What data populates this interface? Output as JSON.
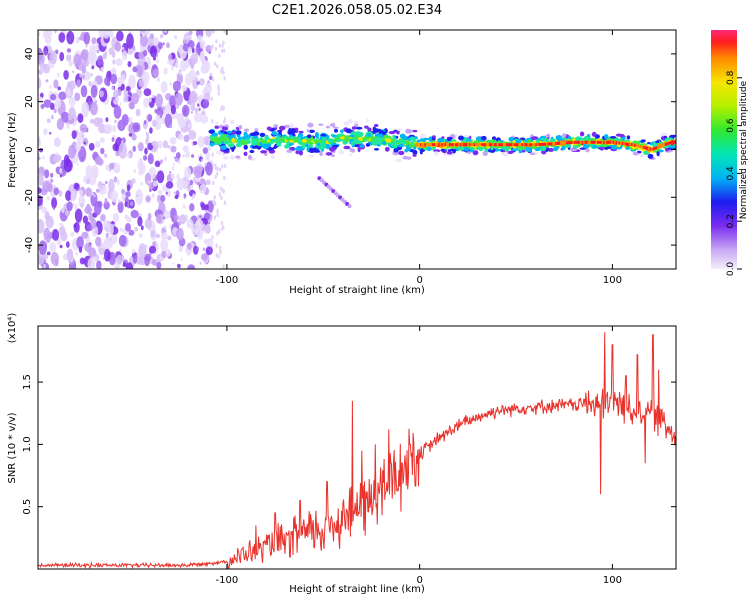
{
  "figure": {
    "title": "C2E1.2026.058.05.02.E34"
  },
  "chart_data": [
    {
      "type": "heatmap",
      "name": "spectrogram",
      "xlabel": "Height of straight line (km)",
      "ylabel": "Frequency (Hz)",
      "xlim": [
        -198,
        133
      ],
      "ylim": [
        -50,
        50
      ],
      "x_ticks": [
        -100,
        0,
        100
      ],
      "y_ticks": [
        -40,
        -20,
        0,
        20,
        40
      ],
      "colorbar": {
        "label": "Normalized spectral amplitude",
        "range": [
          0,
          1
        ],
        "ticks": [
          0.0,
          0.2,
          0.4,
          0.6,
          0.8
        ]
      },
      "signal_band": {
        "description": "narrow band near 0-5 Hz, strongest from 0 to 130 km",
        "ridge": [
          [
            -108,
            5
          ],
          [
            -90,
            3
          ],
          [
            -70,
            4
          ],
          [
            -50,
            3
          ],
          [
            -40,
            5
          ],
          [
            -20,
            4
          ],
          [
            -10,
            3
          ],
          [
            0,
            2
          ],
          [
            20,
            2
          ],
          [
            40,
            2
          ],
          [
            60,
            2
          ],
          [
            80,
            3
          ],
          [
            100,
            3
          ],
          [
            110,
            2
          ],
          [
            120,
            0
          ],
          [
            130,
            3
          ]
        ],
        "noise_region_x": [
          -198,
          -108
        ]
      }
    },
    {
      "type": "line",
      "name": "snr",
      "xlabel": "Height of straight line (km)",
      "ylabel": "SNR (10 * v/v)",
      "multiplier": "(x10⁴)",
      "xlim": [
        -198,
        133
      ],
      "ylim": [
        0,
        1.95
      ],
      "x_ticks": [
        -100,
        0,
        100
      ],
      "y_ticks": [
        0.5,
        1.0,
        1.5
      ],
      "color": "#e8322b",
      "envelope": [
        [
          -198,
          0.03
        ],
        [
          -120,
          0.03
        ],
        [
          -100,
          0.06
        ],
        [
          -90,
          0.12
        ],
        [
          -80,
          0.18
        ],
        [
          -70,
          0.22
        ],
        [
          -60,
          0.28
        ],
        [
          -50,
          0.32
        ],
        [
          -40,
          0.42
        ],
        [
          -30,
          0.5
        ],
        [
          -20,
          0.62
        ],
        [
          -10,
          0.78
        ],
        [
          0,
          0.92
        ],
        [
          10,
          1.05
        ],
        [
          20,
          1.15
        ],
        [
          30,
          1.22
        ],
        [
          40,
          1.27
        ],
        [
          50,
          1.29
        ],
        [
          60,
          1.3
        ],
        [
          70,
          1.31
        ],
        [
          80,
          1.32
        ],
        [
          90,
          1.33
        ],
        [
          95,
          1.3
        ],
        [
          100,
          1.35
        ],
        [
          110,
          1.28
        ],
        [
          120,
          1.25
        ],
        [
          125,
          1.2
        ],
        [
          128,
          1.14
        ],
        [
          133,
          1.1
        ]
      ],
      "spikes": [
        [
          -85,
          0.35
        ],
        [
          -75,
          0.45
        ],
        [
          -62,
          0.55
        ],
        [
          -48,
          0.7
        ],
        [
          -35,
          1.35
        ],
        [
          -30,
          0.95
        ],
        [
          -23,
          1.0
        ],
        [
          -16,
          1.12
        ],
        [
          -5,
          1.0
        ],
        [
          94,
          0.6
        ],
        [
          96,
          1.9
        ],
        [
          100,
          1.8
        ],
        [
          107,
          1.55
        ],
        [
          113,
          1.72
        ],
        [
          117,
          0.85
        ],
        [
          121,
          1.88
        ],
        [
          124,
          1.6
        ]
      ]
    }
  ]
}
